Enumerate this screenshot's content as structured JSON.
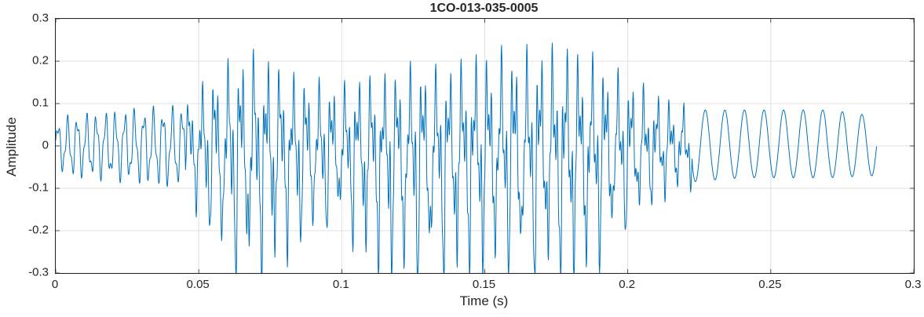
{
  "chart_data": {
    "type": "line",
    "title": "1CO-013-035-0005",
    "xlabel": "Time (s)",
    "ylabel": "Amplitude",
    "xlim": [
      0,
      0.3
    ],
    "ylim": [
      -0.3,
      0.3
    ],
    "x_ticks": [
      0,
      0.05,
      0.1,
      0.15,
      0.2,
      0.25,
      0.3
    ],
    "x_tick_labels": [
      "0",
      "0.05",
      "0.1",
      "0.15",
      "0.2",
      "0.25",
      "0.3"
    ],
    "y_ticks": [
      -0.3,
      -0.2,
      -0.1,
      0,
      0.1,
      0.2,
      0.3
    ],
    "y_tick_labels": [
      "-0.3",
      "-0.2",
      "-0.1",
      "0",
      "0.1",
      "0.2",
      "0.3"
    ],
    "grid": true,
    "grid_color": "#e0e0e0",
    "axis_color": "#262626",
    "line_color": "#0072BD",
    "legend": null,
    "series": [
      {
        "name": "waveform",
        "description": "Dense oscillatory amplitude signal: low-level ~0.07 oscillation 0-0.045 s, loud complex voiced-like burst 0.045-0.222 s with positive peaks to +0.21 and negative spikes to -0.30, then clean ~146 Hz sinusoid of amplitude ~0.08 until 0.287 s",
        "synth": {
          "t_start": 0,
          "t_end": 0.287,
          "sample_rate": 8000,
          "pre_freq": 300,
          "pre_freq2": 735,
          "voiced_start": 0.0455,
          "voiced_end": 0.2225,
          "f0": 220,
          "h2": 2.57,
          "h3": 5.13,
          "tail_freq": 146,
          "envelope": [
            [
              0.0,
              0.055,
              0.055
            ],
            [
              0.005,
              0.07,
              0.07
            ],
            [
              0.03,
              0.085,
              0.085
            ],
            [
              0.045,
              0.09,
              0.1
            ],
            [
              0.05,
              0.13,
              0.15
            ],
            [
              0.058,
              0.17,
              0.25
            ],
            [
              0.065,
              0.2,
              0.3
            ],
            [
              0.072,
              0.205,
              0.28
            ],
            [
              0.08,
              0.16,
              0.24
            ],
            [
              0.09,
              0.14,
              0.2
            ],
            [
              0.1,
              0.13,
              0.17
            ],
            [
              0.108,
              0.15,
              0.24
            ],
            [
              0.115,
              0.15,
              0.29
            ],
            [
              0.125,
              0.17,
              0.3
            ],
            [
              0.135,
              0.16,
              0.29
            ],
            [
              0.145,
              0.19,
              0.28
            ],
            [
              0.155,
              0.2,
              0.26
            ],
            [
              0.165,
              0.2,
              0.3
            ],
            [
              0.172,
              0.21,
              0.28
            ],
            [
              0.18,
              0.21,
              0.3
            ],
            [
              0.188,
              0.19,
              0.27
            ],
            [
              0.195,
              0.16,
              0.22
            ],
            [
              0.205,
              0.13,
              0.15
            ],
            [
              0.215,
              0.1,
              0.1
            ],
            [
              0.222,
              0.085,
              0.085
            ],
            [
              0.24,
              0.085,
              0.075
            ],
            [
              0.27,
              0.085,
              0.075
            ],
            [
              0.287,
              0.07,
              0.07
            ]
          ]
        }
      }
    ]
  }
}
